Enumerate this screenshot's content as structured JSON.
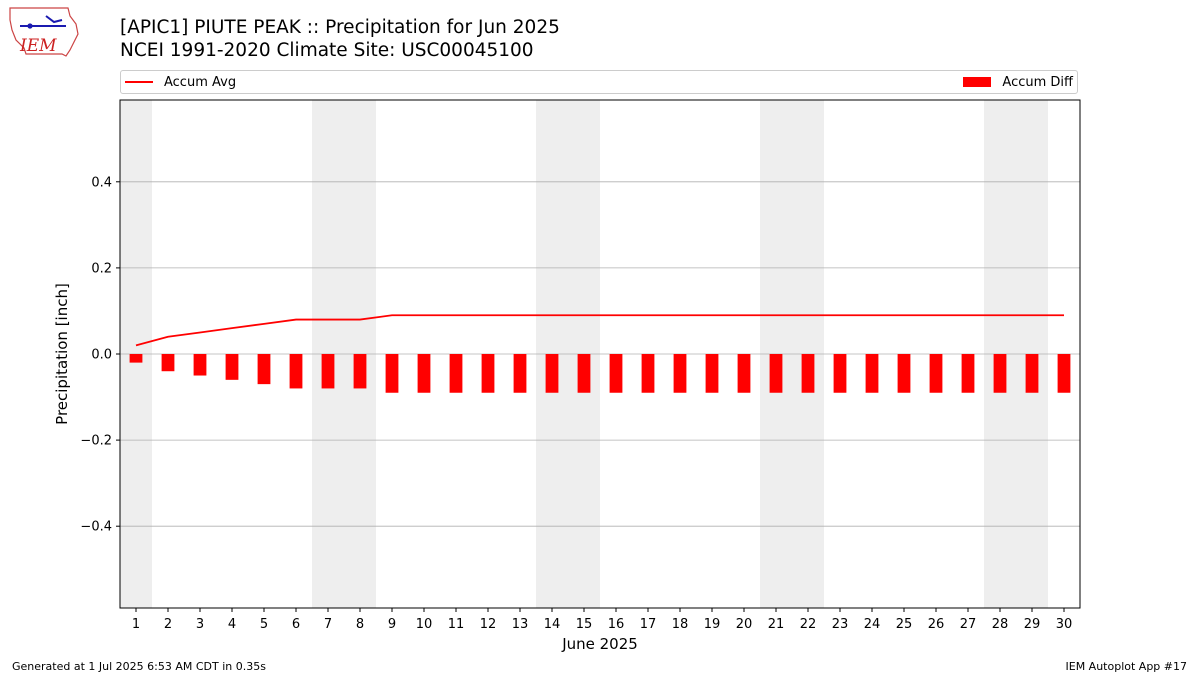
{
  "header": {
    "title": "[APIC1] PIUTE PEAK :: Precipitation for Jun 2025",
    "subtitle": "NCEI 1991-2020 Climate Site: USC00045100",
    "logo_text": "IEM"
  },
  "footer": {
    "left": "Generated at 1 Jul 2025 6:53 AM CDT in 0.35s",
    "right": "IEM Autoplot App #17"
  },
  "colors": {
    "series": "#ff0000",
    "weekend_band": "#eeeeee",
    "grid": "#b0b0b0"
  },
  "chart_data": {
    "type": "bar",
    "xlabel": "June 2025",
    "ylabel": "Precipitation [inch]",
    "ylim": [
      -0.59,
      0.59
    ],
    "xlim": [
      0.5,
      30.5
    ],
    "yticks": [
      -0.4,
      -0.2,
      0.0,
      0.2,
      0.4
    ],
    "ytick_labels": [
      "−0.4",
      "−0.2",
      "0.0",
      "0.2",
      "0.4"
    ],
    "grid": "horizontal",
    "legend_placement": "top",
    "categories": [
      "1",
      "2",
      "3",
      "4",
      "5",
      "6",
      "7",
      "8",
      "9",
      "10",
      "11",
      "12",
      "13",
      "14",
      "15",
      "16",
      "17",
      "18",
      "19",
      "20",
      "21",
      "22",
      "23",
      "24",
      "25",
      "26",
      "27",
      "28",
      "29",
      "30"
    ],
    "shaded_days": [
      1,
      7,
      8,
      14,
      15,
      21,
      22,
      28,
      29
    ],
    "series": [
      {
        "name": "Accum Avg",
        "type": "line",
        "values": [
          0.02,
          0.04,
          0.05,
          0.06,
          0.07,
          0.08,
          0.08,
          0.08,
          0.09,
          0.09,
          0.09,
          0.09,
          0.09,
          0.09,
          0.09,
          0.09,
          0.09,
          0.09,
          0.09,
          0.09,
          0.09,
          0.09,
          0.09,
          0.09,
          0.09,
          0.09,
          0.09,
          0.09,
          0.09,
          0.09
        ]
      },
      {
        "name": "Accum Diff",
        "type": "bar",
        "values": [
          -0.02,
          -0.04,
          -0.05,
          -0.06,
          -0.07,
          -0.08,
          -0.08,
          -0.08,
          -0.09,
          -0.09,
          -0.09,
          -0.09,
          -0.09,
          -0.09,
          -0.09,
          -0.09,
          -0.09,
          -0.09,
          -0.09,
          -0.09,
          -0.09,
          -0.09,
          -0.09,
          -0.09,
          -0.09,
          -0.09,
          -0.09,
          -0.09,
          -0.09,
          -0.09
        ]
      }
    ]
  }
}
